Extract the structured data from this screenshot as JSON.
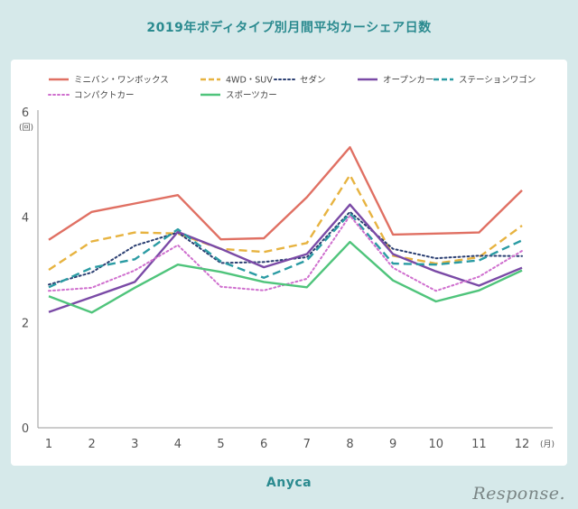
{
  "header": {
    "title": "2019年ボディタイプ別月間平均カーシェア日数"
  },
  "footer": {
    "brand": "Anyca",
    "watermark": "Response."
  },
  "chart_data": {
    "type": "line",
    "title": "2019年ボディタイプ別月間平均カーシェア日数",
    "x": [
      "1",
      "2",
      "3",
      "4",
      "5",
      "6",
      "7",
      "8",
      "9",
      "10",
      "11",
      "12"
    ],
    "xlabel": "(月)",
    "ylabel": "(回)",
    "ylim": [
      0,
      6
    ],
    "yticks": [
      0,
      2,
      4,
      6
    ],
    "legend_position": "top",
    "grid": false,
    "series": [
      {
        "name": "ミニバン・ワンボックス",
        "color": "#e07063",
        "dash": "solid",
        "values": [
          3.57,
          4.1,
          4.26,
          4.42,
          3.58,
          3.6,
          4.38,
          5.33,
          3.67,
          3.69,
          3.71,
          4.51
        ]
      },
      {
        "name": "4WD・SUV",
        "color": "#e7b340",
        "dash": "dashed",
        "values": [
          3.0,
          3.54,
          3.71,
          3.69,
          3.4,
          3.34,
          3.51,
          4.8,
          3.27,
          3.12,
          3.24,
          3.84
        ]
      },
      {
        "name": "セダン",
        "color": "#2b3f72",
        "dash": "dotted",
        "values": [
          2.72,
          2.95,
          3.46,
          3.71,
          3.13,
          3.15,
          3.24,
          4.1,
          3.4,
          3.22,
          3.27,
          3.26
        ]
      },
      {
        "name": "オープンカー",
        "color": "#7a4aa6",
        "dash": "solid",
        "values": [
          2.2,
          2.48,
          2.77,
          3.72,
          3.4,
          3.05,
          3.3,
          4.24,
          3.3,
          2.97,
          2.7,
          3.04
        ]
      },
      {
        "name": "ステーションワゴン",
        "color": "#2a9ba3",
        "dash": "dashed",
        "values": [
          2.67,
          3.04,
          3.2,
          3.77,
          3.16,
          2.85,
          3.18,
          4.07,
          3.12,
          3.1,
          3.18,
          3.56
        ]
      },
      {
        "name": "コンパクトカー",
        "color": "#cf6fce",
        "dash": "dotted",
        "values": [
          2.6,
          2.66,
          2.99,
          3.47,
          2.68,
          2.61,
          2.83,
          4.03,
          3.04,
          2.6,
          2.87,
          3.36
        ]
      },
      {
        "name": "スポーツカー",
        "color": "#4fc47b",
        "dash": "solid",
        "values": [
          2.5,
          2.19,
          2.66,
          3.1,
          2.96,
          2.77,
          2.67,
          3.53,
          2.8,
          2.4,
          2.61,
          2.99
        ]
      }
    ]
  }
}
